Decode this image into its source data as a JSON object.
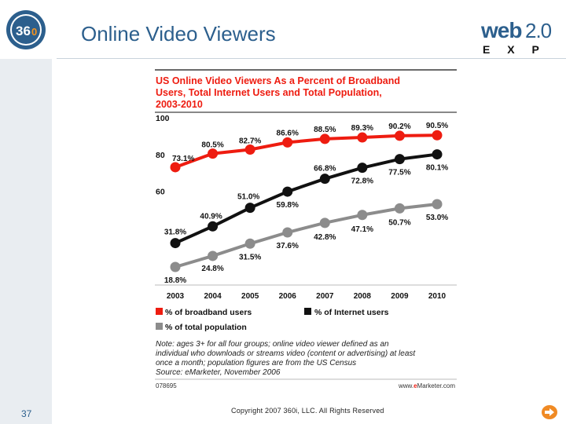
{
  "slide": {
    "title": "Online Video Viewers",
    "number": "37",
    "copyright": "Copyright 2007 360i, LLC. All Rights Reserved",
    "logo_left_text": "36",
    "logo_left_small": "0",
    "logo_right_line1": "web",
    "logo_right_line1b": "2.0",
    "logo_right_line2": "E X P O",
    "accent_color": "#2c5f8d",
    "icons": [
      "logo-360i",
      "web20-expo-logo",
      "next-arrow-icon"
    ]
  },
  "chart_data": {
    "type": "line",
    "title": "US Online Video Viewers As a Percent of Broadband Users, Total Internet Users and Total Population, 2003-2010",
    "title_lines": [
      "US Online Video Viewers As a Percent of Broadband",
      "Users, Total Internet Users and Total Population,",
      "2003-2010"
    ],
    "categories": [
      "2003",
      "2004",
      "2005",
      "2006",
      "2007",
      "2008",
      "2009",
      "2010"
    ],
    "ylim": [
      18.8,
      100
    ],
    "yticks": [
      "100",
      "80",
      "60"
    ],
    "ytick_values": [
      100,
      80,
      60
    ],
    "series": [
      {
        "name": "% of broadband users",
        "color": "#ee1c10",
        "values": [
          73.1,
          80.5,
          82.7,
          86.6,
          88.5,
          89.3,
          90.2,
          90.5
        ],
        "labels": [
          "73.1%",
          "80.5%",
          "82.7%",
          "86.6%",
          "88.5%",
          "89.3%",
          "90.2%",
          "90.5%"
        ]
      },
      {
        "name": "% of Internet users",
        "color": "#111111",
        "values": [
          31.8,
          40.9,
          51.0,
          59.8,
          66.8,
          72.8,
          77.5,
          80.1
        ],
        "labels": [
          "31.8%",
          "40.9%",
          "51.0%",
          "59.8%",
          "66.8%",
          "72.8%",
          "77.5%",
          "80.1%"
        ]
      },
      {
        "name": "% of total population",
        "color": "#8c8c8c",
        "values": [
          18.8,
          24.8,
          31.5,
          37.6,
          42.8,
          47.1,
          50.7,
          53.0
        ],
        "labels": [
          "18.8%",
          "24.8%",
          "31.5%",
          "37.6%",
          "42.8%",
          "47.1%",
          "50.7%",
          "53.0%"
        ]
      }
    ],
    "note_lines": [
      "Note: ages 3+ for all four groups; online video viewer defined as an",
      "individual who downloads or streams video (content or advertising) at least",
      "once a month; population figures are from the US Census",
      "Source: eMarketer, November 2006"
    ],
    "footer_id": "078695",
    "footer_site_a": "www.",
    "footer_site_b": "e",
    "footer_site_c": "Marketer.com",
    "title_color": "#ee1c10",
    "grid": false,
    "legend_position": "bottom"
  }
}
